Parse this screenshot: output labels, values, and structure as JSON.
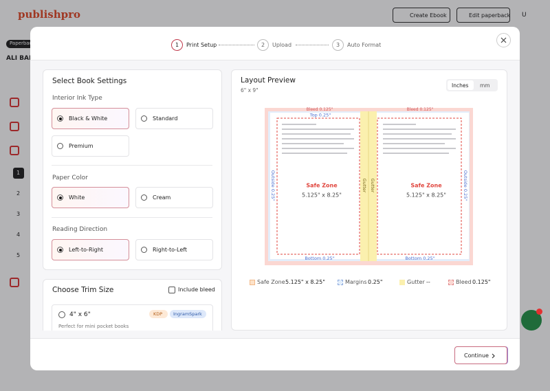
{
  "app": {
    "logo": "publishpro",
    "create_ebook": "Create Ebook",
    "edit_paperback": "Edit paperback",
    "avatar": "U",
    "tag": "Paperbac",
    "book_title": "ALI BAB",
    "steps": [
      "1",
      "2",
      "3",
      "4",
      "5"
    ]
  },
  "modal": {
    "stepper": [
      {
        "number": "1",
        "label": "Print Setup"
      },
      {
        "number": "2",
        "label": "Upload"
      },
      {
        "number": "3",
        "label": "Auto Format"
      }
    ],
    "settings": {
      "title": "Select Book Settings",
      "groups": [
        {
          "label": "Interior Ink Type",
          "options": [
            "Black & White",
            "Standard",
            "Premium"
          ],
          "selected": 0
        },
        {
          "label": "Paper Color",
          "options": [
            "White",
            "Cream"
          ],
          "selected": 0
        },
        {
          "label": "Reading Direction",
          "options": [
            "Left-to-Right",
            "Right-to-Left"
          ],
          "selected": 0
        }
      ]
    },
    "trim": {
      "title": "Choose Trim Size",
      "include_bleed": "Include bleed",
      "options": [
        {
          "size": "4\" x 6\"",
          "tags": [
            "KDP",
            "IngramSpark"
          ],
          "description": "Perfect for mini pocket books"
        }
      ]
    },
    "preview": {
      "title": "Layout Preview",
      "size": "6\" x 9\"",
      "units": [
        "Inches",
        "mm"
      ],
      "diagram": {
        "bleed_label": "Bleed 0.125\"",
        "top_label": "Top 0.25\"",
        "outside_label": "Outside 0.25\"",
        "gutter_label": "Gutter",
        "safe_zone": "Safe Zone",
        "safe_size": "5.125\" x 8.25\"",
        "bottom_label": "Bottom 0.25\""
      },
      "legend": [
        {
          "name": "Safe Zone",
          "value": "5.125\" x 8.25\""
        },
        {
          "name": "Margins",
          "value": "0.25\""
        },
        {
          "name": "Gutter",
          "value": "--"
        },
        {
          "name": "Bleed",
          "value": "0.125\""
        }
      ]
    },
    "continue": "Continue"
  }
}
